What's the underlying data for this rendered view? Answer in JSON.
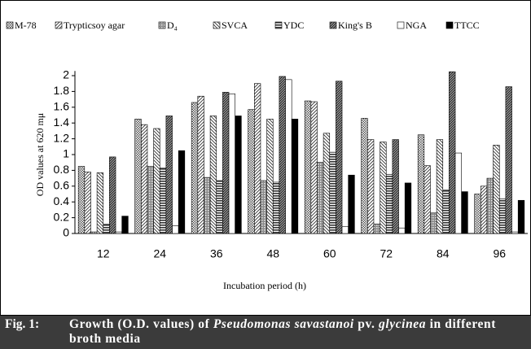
{
  "chart_data": {
    "type": "bar",
    "y_label": "OD values at 620 mμ",
    "x_label": "Incubation period (h)",
    "categories": [
      "12",
      "24",
      "36",
      "48",
      "60",
      "72",
      "84",
      "96"
    ],
    "series": [
      {
        "name": "M-78",
        "pattern": "checker",
        "values": [
          0.85,
          1.45,
          1.66,
          1.57,
          1.68,
          1.46,
          1.25,
          0.5
        ]
      },
      {
        "name": "Trypticsoy agar",
        "pattern": "diag",
        "values": [
          0.78,
          1.38,
          1.74,
          1.9,
          1.67,
          1.19,
          0.86,
          0.6
        ]
      },
      {
        "name": "D₄",
        "pattern": "grid",
        "values": [
          0.02,
          0.85,
          0.71,
          0.67,
          0.9,
          0.12,
          0.26,
          0.7
        ]
      },
      {
        "name": "SVCA",
        "pattern": "back",
        "values": [
          0.77,
          1.33,
          1.49,
          1.45,
          1.27,
          1.16,
          1.19,
          1.12
        ]
      },
      {
        "name": "YDC",
        "pattern": "horiz",
        "values": [
          0.12,
          0.83,
          0.67,
          0.65,
          1.03,
          0.75,
          0.55,
          0.44
        ]
      },
      {
        "name": "King's B",
        "pattern": "dense",
        "values": [
          0.97,
          1.49,
          1.79,
          1.99,
          1.93,
          1.19,
          2.05,
          1.86
        ]
      },
      {
        "name": "NGA",
        "pattern": "white",
        "values": [
          0.02,
          0.1,
          1.77,
          1.95,
          0.09,
          0.07,
          1.02,
          0.02
        ]
      },
      {
        "name": "TTCC",
        "pattern": "black",
        "values": [
          0.22,
          1.05,
          1.49,
          1.45,
          0.74,
          0.64,
          0.53,
          0.42
        ]
      }
    ],
    "ylim": [
      0,
      2.1
    ],
    "yticks": [
      0,
      0.2,
      0.4,
      0.6,
      0.8,
      1,
      1.2,
      1.4,
      1.6,
      1.8,
      2
    ],
    "grid": false
  },
  "figure_caption": {
    "label": "Fig. 1:",
    "parts": [
      "Growth (O.D. values) of ",
      "Pseudomonas savastanoi",
      " pv. ",
      "glycinea",
      " in different broth media"
    ]
  }
}
